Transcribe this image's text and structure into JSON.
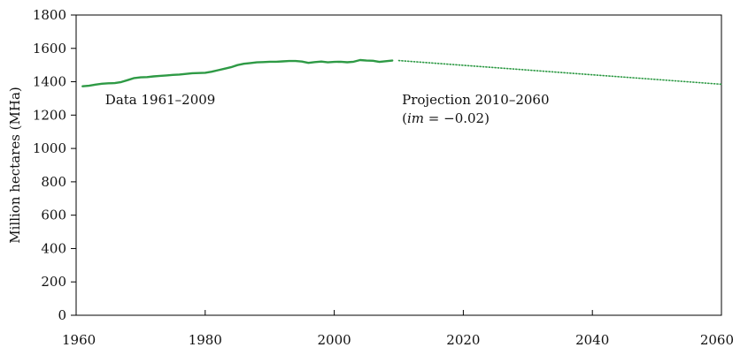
{
  "chart_data": {
    "type": "line",
    "title": "",
    "xlabel": "",
    "ylabel": "Million hectares (MHa)",
    "xlim": [
      1960,
      2060
    ],
    "ylim": [
      0,
      1800
    ],
    "x_ticks": [
      "1960",
      "1980",
      "2000",
      "2020",
      "2040",
      "2060"
    ],
    "y_ticks": [
      "0",
      "200",
      "400",
      "600",
      "800",
      "1000",
      "1200",
      "1400",
      "1600",
      "1800"
    ],
    "grid": false,
    "series": [
      {
        "style": "solid",
        "color": "#2e9a45",
        "x": [
          1961,
          1962,
          1963,
          1964,
          1965,
          1966,
          1967,
          1968,
          1969,
          1970,
          1971,
          1972,
          1973,
          1974,
          1975,
          1976,
          1977,
          1978,
          1979,
          1980,
          1981,
          1982,
          1983,
          1984,
          1985,
          1986,
          1987,
          1988,
          1989,
          1990,
          1991,
          1992,
          1993,
          1994,
          1995,
          1996,
          1997,
          1998,
          1999,
          2000,
          2001,
          2002,
          2003,
          2004,
          2005,
          2006,
          2007,
          2008,
          2009
        ],
        "y": [
          1373,
          1376,
          1383,
          1388,
          1391,
          1392,
          1398,
          1410,
          1422,
          1426,
          1428,
          1432,
          1435,
          1438,
          1441,
          1443,
          1447,
          1451,
          1452,
          1454,
          1460,
          1469,
          1478,
          1487,
          1500,
          1508,
          1512,
          1516,
          1518,
          1520,
          1520,
          1522,
          1524,
          1524,
          1521,
          1513,
          1518,
          1521,
          1516,
          1519,
          1520,
          1517,
          1520,
          1530,
          1527,
          1526,
          1519,
          1523,
          1527
        ]
      },
      {
        "style": "dotted",
        "color": "#2e9a45",
        "x": [
          2010,
          2060
        ],
        "y": [
          1527,
          1385
        ]
      }
    ],
    "annotations": [
      {
        "text": "Data 1961–2009",
        "x": 1964.5,
        "y": 1265
      },
      {
        "text": "Projection 2010–2060",
        "x": 2010.5,
        "y": 1265
      },
      {
        "text": "(im = −0.02)",
        "x": 2010.5,
        "y": 1155
      }
    ]
  }
}
